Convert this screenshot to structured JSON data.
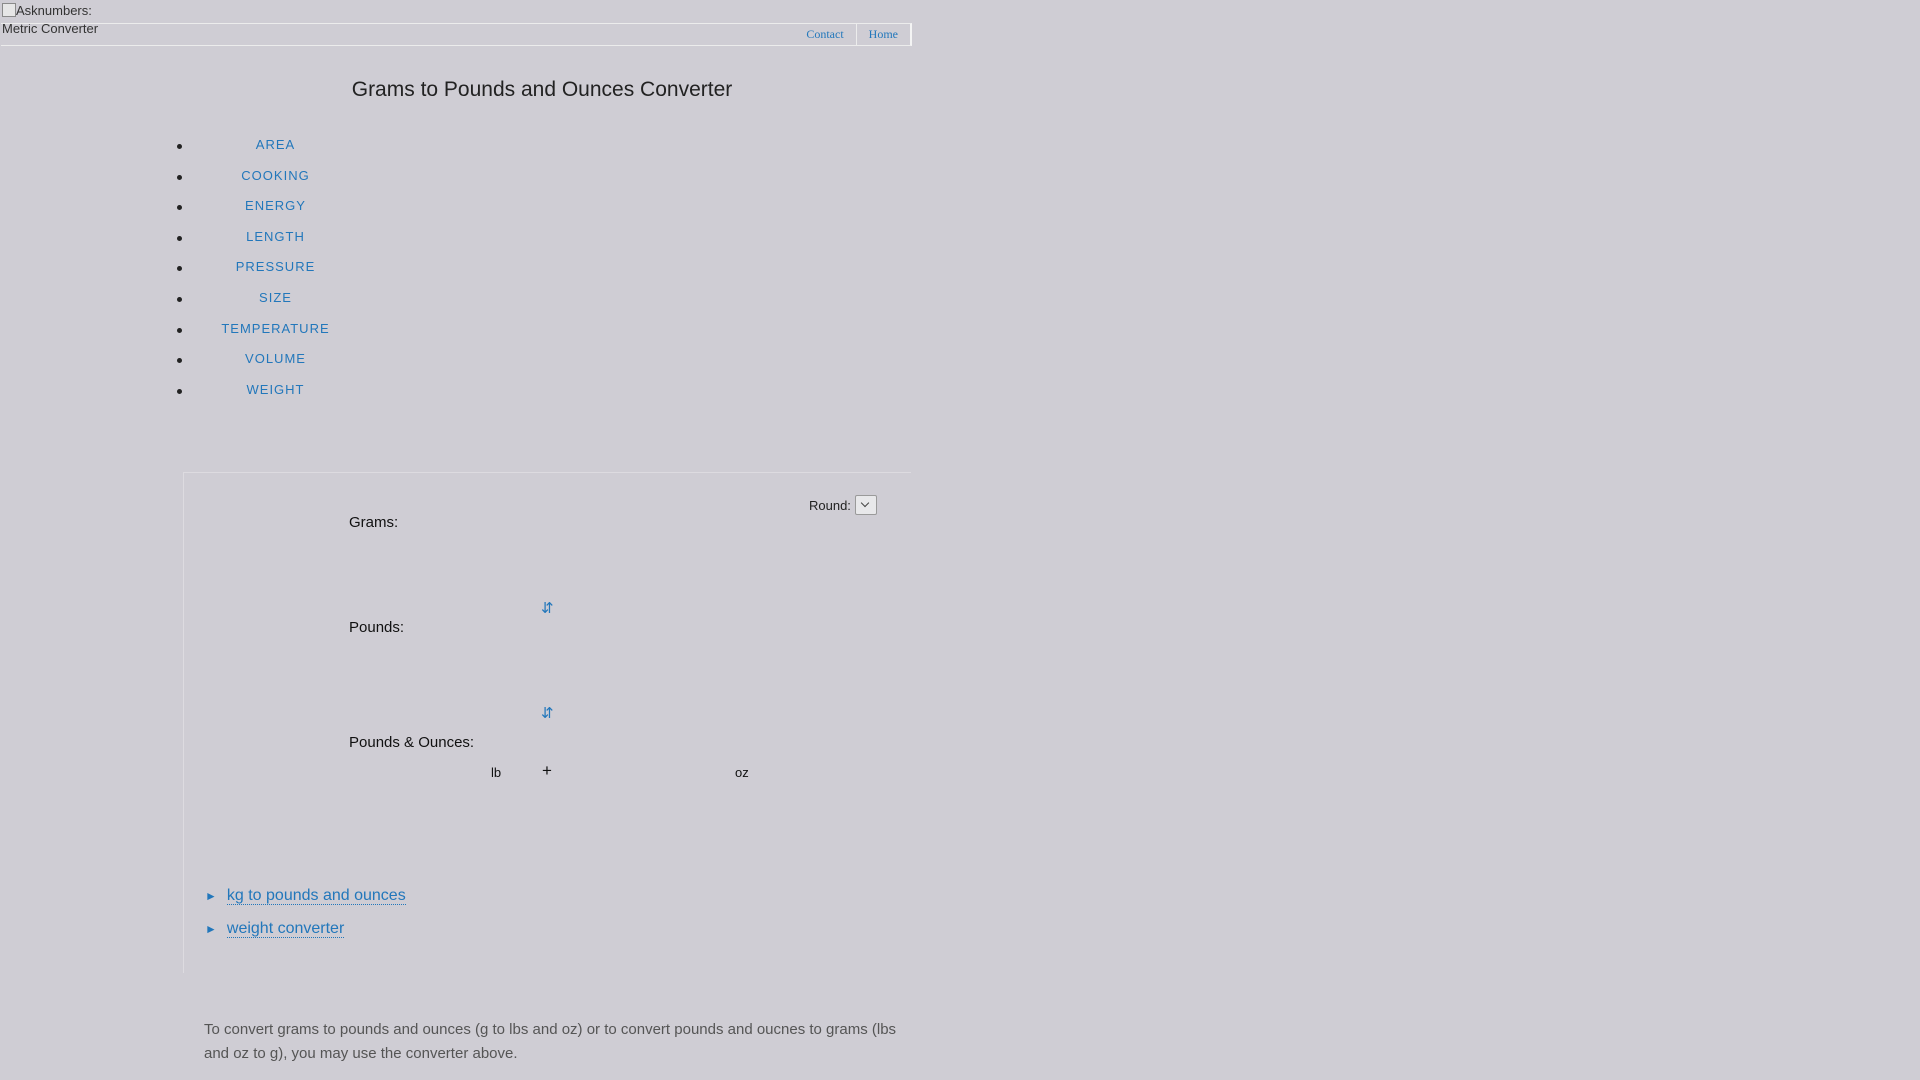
{
  "header": {
    "logo_alt": "Asknumbers: Metric Converter",
    "nav": {
      "contact": "Contact",
      "home": "Home"
    }
  },
  "page_title": "Grams to Pounds and Ounces Converter",
  "categories": [
    "AREA",
    "COOKING",
    "ENERGY",
    "LENGTH",
    "PRESSURE",
    "SIZE",
    "TEMPERATURE",
    "VOLUME",
    "WEIGHT"
  ],
  "converter": {
    "round_label": "Round:",
    "round_value": "",
    "grams_label": "Grams:",
    "grams_value": "",
    "swap_icon": "⇵",
    "pounds_label": "Pounds:",
    "pounds_value": "",
    "lboz_label": "Pounds & Ounces:",
    "lb_value": "",
    "lb_unit": "lb",
    "plus": "+",
    "oz_value": "",
    "oz_unit": "oz"
  },
  "related": {
    "arrow": "►",
    "links": [
      "kg to pounds and ounces",
      "weight converter"
    ]
  },
  "description": "To convert grams to pounds and ounces (g to lbs and oz) or to convert pounds and oucnes to grams (lbs and oz to g), you may use the converter above.",
  "colors": {
    "background": "#cfcdd4",
    "link": "#2277bb",
    "text": "#222222"
  },
  "icons": {
    "swap": "swap-vertical-icon",
    "logo": "broken-image-icon"
  }
}
